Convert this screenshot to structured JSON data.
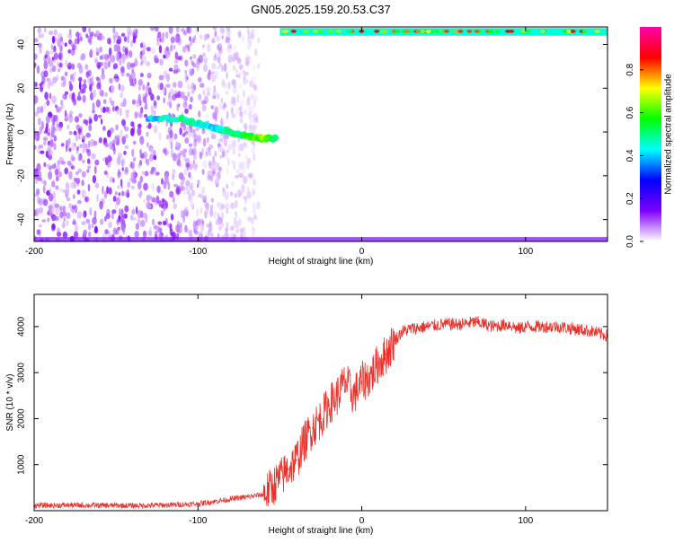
{
  "figure": {
    "title": "GN05.2025.159.20.53.C37"
  },
  "chart_data": [
    {
      "type": "heatmap",
      "xlabel": "Height of straight line (km)",
      "ylabel": "Frequency (Hz)",
      "xlim": [
        -200,
        150
      ],
      "ylim": [
        -50,
        48
      ],
      "x_ticks": [
        -200,
        -100,
        0,
        100
      ],
      "y_ticks": [
        -40,
        -20,
        0,
        20,
        40
      ],
      "colorbar": {
        "label": "Normalized spectral amplitude",
        "range": [
          0,
          1
        ],
        "ticks": [
          0.0,
          0.2,
          0.4,
          0.6,
          0.8
        ],
        "colors": [
          "#ffffff",
          "#7f00ff",
          "#0000ff",
          "#00ffff",
          "#00ff00",
          "#ffff00",
          "#ff0000",
          "#ff00aa"
        ]
      },
      "features": [
        {
          "description_type": "noise_band",
          "x_range": [
            -200,
            -63
          ],
          "y_range": [
            -50,
            48
          ],
          "amplitude": 0.12
        },
        {
          "description_type": "track",
          "points": [
            [
              -130,
              6
            ],
            [
              -110,
              6
            ],
            [
              -100,
              4
            ],
            [
              -90,
              2
            ],
            [
              -80,
              0
            ],
            [
              -70,
              -2
            ],
            [
              -60,
              -3
            ],
            [
              -52,
              -3
            ]
          ],
          "amplitude": [
            0.4,
            0.5,
            0.45,
            0.4,
            0.5,
            0.55,
            0.65,
            0.5
          ]
        },
        {
          "description_type": "top_band",
          "x_range": [
            -50,
            150
          ],
          "y": 46,
          "amplitude": 0.45
        },
        {
          "description_type": "bottom_band",
          "x_range": [
            -200,
            150
          ],
          "y": -49,
          "amplitude": 0.15
        }
      ]
    },
    {
      "type": "line",
      "xlabel": "Height of straight line (km)",
      "ylabel": "SNR (10 * v/v)",
      "xlim": [
        -200,
        150
      ],
      "ylim": [
        0,
        4700
      ],
      "x_ticks": [
        -200,
        -100,
        0,
        100
      ],
      "y_ticks": [
        1000,
        2000,
        3000,
        4000
      ],
      "color": "#e8302a",
      "series": [
        {
          "x": [
            -200,
            -180,
            -160,
            -140,
            -120,
            -100,
            -90,
            -80,
            -70,
            -60,
            -55,
            -50,
            -45,
            -40,
            -35,
            -30,
            -25,
            -20,
            -15,
            -10,
            -5,
            0,
            5,
            10,
            15,
            20,
            25,
            30,
            40,
            50,
            60,
            70,
            80,
            90,
            95,
            100,
            110,
            120,
            130,
            140,
            150
          ],
          "values": [
            110,
            120,
            115,
            110,
            120,
            150,
            200,
            250,
            300,
            350,
            500,
            700,
            900,
            1100,
            1500,
            1800,
            2000,
            2300,
            2500,
            2800,
            2500,
            2800,
            2900,
            3200,
            3400,
            3700,
            3900,
            3950,
            4000,
            4050,
            4050,
            4100,
            4000,
            4050,
            3950,
            4000,
            4000,
            4000,
            3950,
            3900,
            3800
          ]
        }
      ]
    }
  ]
}
